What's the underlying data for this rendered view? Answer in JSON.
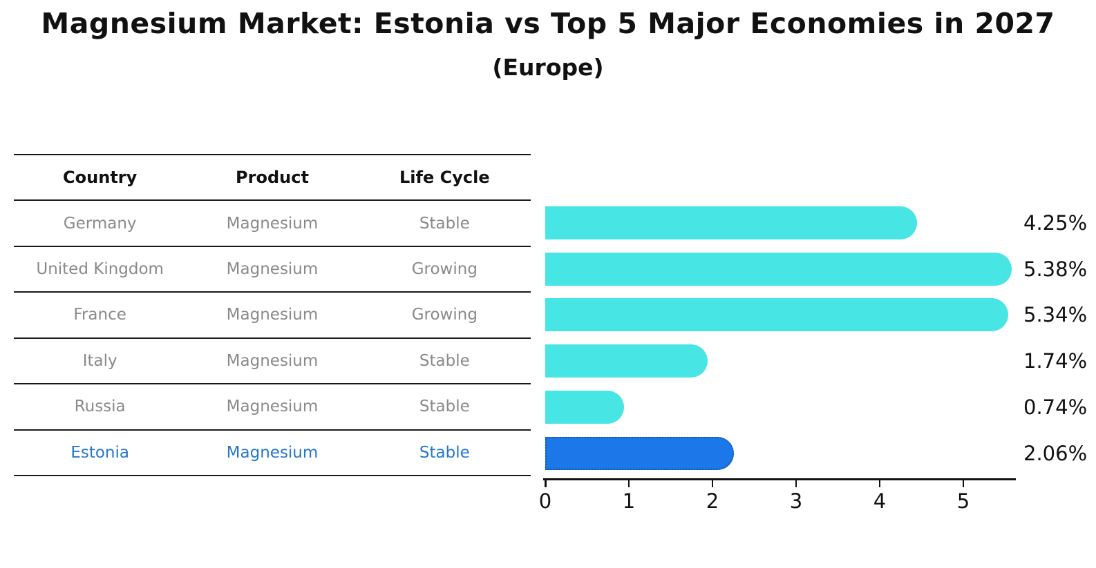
{
  "title": "Magnesium Market: Estonia vs Top 5 Major Economies in 2027",
  "subtitle": "(Europe)",
  "table": {
    "headers": [
      "Country",
      "Product",
      "Life Cycle"
    ],
    "rows": [
      {
        "country": "Germany",
        "product": "Magnesium",
        "life_cycle": "Stable"
      },
      {
        "country": "United Kingdom",
        "product": "Magnesium",
        "life_cycle": "Growing"
      },
      {
        "country": "France",
        "product": "Magnesium",
        "life_cycle": "Growing"
      },
      {
        "country": "Italy",
        "product": "Magnesium",
        "life_cycle": "Stable"
      },
      {
        "country": "Russia",
        "product": "Magnesium",
        "life_cycle": "Stable"
      },
      {
        "country": "Estonia",
        "product": "Magnesium",
        "life_cycle": "Stable"
      }
    ],
    "highlighted_row": "Estonia"
  },
  "chart_data": {
    "type": "bar",
    "orientation": "horizontal",
    "title": "Magnesium Market: Estonia vs Top 5 Major Economies in 2027",
    "subtitle": "(Europe)",
    "categories": [
      "Germany",
      "United Kingdom",
      "France",
      "Italy",
      "Russia",
      "Estonia"
    ],
    "values": [
      4.25,
      5.38,
      5.34,
      1.74,
      0.74,
      2.06
    ],
    "value_labels": [
      "4.25%",
      "5.38%",
      "5.34%",
      "1.74%",
      "0.74%",
      "2.06%"
    ],
    "unit": "percent",
    "x_ticks": [
      "0",
      "1",
      "2",
      "3",
      "4",
      "5"
    ],
    "xlim": [
      0,
      5.62
    ],
    "highlight_index": 5,
    "grid": false,
    "legend": false
  },
  "colors": {
    "background": "#ffffff",
    "bar": "#48E5E5",
    "highlight_bar": "#1C78E8",
    "highlight_border": "#1256A8",
    "table_text": "#8a8a8a",
    "header_text": "#111111",
    "highlight_text": "#2477CC",
    "axis": "#111111"
  }
}
